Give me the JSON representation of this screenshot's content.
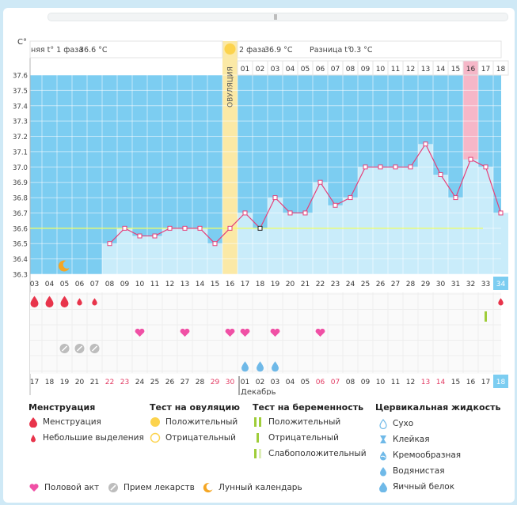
{
  "header": {
    "unit": "C°",
    "phase1_label": "няя t° 1 фаза",
    "phase1_value": "36.6 °C",
    "phase2_label": "2 фаза",
    "phase2_value": "36.9 °C",
    "diff_label": "Разница t°",
    "diff_value": "0.3 °C"
  },
  "ovulation_label": "ОВУЛЯЦИЯ",
  "month_label": "Декабрь",
  "chart_data": {
    "type": "line",
    "ylim": [
      36.3,
      37.6
    ],
    "yticks": [
      "37.6",
      "37.5",
      "37.4",
      "37.3",
      "37.2",
      "37.1",
      "37.0",
      "36.9",
      "36.8",
      "36.7",
      "36.6",
      "36.5",
      "36.4",
      "36.3"
    ],
    "cycle_days": [
      "03",
      "04",
      "05",
      "06",
      "07",
      "08",
      "09",
      "10",
      "11",
      "12",
      "13",
      "14",
      "15",
      "16",
      "17",
      "18",
      "19",
      "20",
      "21",
      "22",
      "23",
      "24",
      "25",
      "26",
      "27",
      "28",
      "29",
      "30",
      "31",
      "32",
      "33",
      "34"
    ],
    "top_days": [
      "01",
      "02",
      "03",
      "04",
      "05",
      "06",
      "07",
      "08",
      "09",
      "10",
      "11",
      "12",
      "13",
      "14",
      "15",
      "16",
      "17",
      "18"
    ],
    "calendar_days": [
      "17",
      "18",
      "19",
      "20",
      "21",
      "22",
      "23",
      "24",
      "25",
      "26",
      "27",
      "28",
      "29",
      "30",
      "01",
      "02",
      "03",
      "04",
      "05",
      "06",
      "07",
      "08",
      "09",
      "10",
      "11",
      "12",
      "13",
      "14",
      "15",
      "16",
      "17",
      "18"
    ],
    "calendar_red": [
      "22",
      "23",
      "29",
      "30",
      "06",
      "07",
      "13",
      "14"
    ],
    "temps": [
      null,
      null,
      null,
      null,
      null,
      36.5,
      36.6,
      36.55,
      36.55,
      36.6,
      36.6,
      36.6,
      36.5,
      36.6,
      36.7,
      36.6,
      36.8,
      36.7,
      36.7,
      36.9,
      36.75,
      36.8,
      37.0,
      37.0,
      37.0,
      37.0,
      37.15,
      36.95,
      36.8,
      37.05,
      37.0,
      36.7
    ],
    "coverline": 36.6
  },
  "markers": {
    "menstruation": [
      "03",
      "04",
      "05"
    ],
    "spotting": [
      "06",
      "07"
    ],
    "intercourse": [
      "10",
      "13",
      "16",
      "17",
      "19",
      "22"
    ],
    "medication": [
      "05",
      "06",
      "07"
    ],
    "cervical_watery": [
      "17",
      "18",
      "19"
    ]
  },
  "legend": {
    "menstruation_title": "Менструация",
    "menstruation": "Менструация",
    "spotting": "Небольшие выделения",
    "ovtest_title": "Тест на овуляцию",
    "ov_positive": "Положительный",
    "ov_negative": "Отрицательный",
    "preg_title": "Тест на беременность",
    "preg_positive": "Положительный",
    "preg_negative": "Отрицательный",
    "preg_weak": "Слабоположительный",
    "cervical_title": "Цервикальная жидкость",
    "dry": "Сухо",
    "sticky": "Клейкая",
    "creamy": "Кремообразная",
    "watery": "Водянистая",
    "eggwhite": "Яичный белок",
    "intercourse": "Половой акт",
    "medication": "Прием лекарств",
    "lunar": "Лунный календарь"
  },
  "colors": {
    "sky": "#7ccdf1",
    "bar": "#c9ecfa",
    "line": "#e5407a",
    "ovulation": "#fbe9a6",
    "highlight": "#f6b7c8",
    "heart": "#f050a5",
    "drop": "#e8344b",
    "water": "#6fb9e8"
  }
}
